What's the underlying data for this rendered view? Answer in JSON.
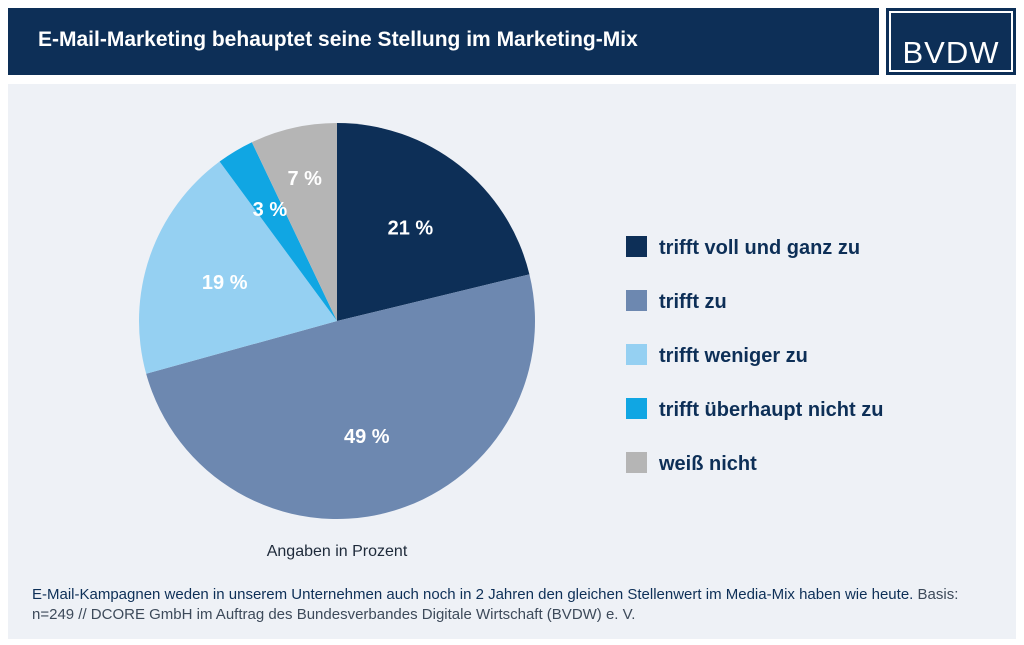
{
  "header": {
    "title": "E-Mail-Marketing behauptet seine Stellung im Marketing-Mix",
    "logo": "BVDW"
  },
  "colors": {
    "header_bg": "#0d2f57",
    "panel_bg": "#eef1f6"
  },
  "chart_data": {
    "type": "pie",
    "categories": [
      "trifft voll und ganz zu",
      "trifft zu",
      "trifft weniger zu",
      "trifft überhaupt nicht zu",
      "weiß nicht"
    ],
    "values": [
      21,
      49,
      19,
      3,
      7
    ],
    "value_labels": [
      "21 %",
      "49 %",
      "19 %",
      "3 %",
      "7 %"
    ],
    "colors": [
      "#0d2f57",
      "#6d88b0",
      "#95d0f2",
      "#10a6e3",
      "#b5b5b5"
    ],
    "start": "12 o'clock, clockwise",
    "legend_position": "right",
    "note": "Angaben in Prozent"
  },
  "footer": {
    "question": "E-Mail-Kampagnen weden in unserem Unternehmen auch noch in 2 Jahren den gleichen Stellenwert im Media-Mix haben wie heute.",
    "basis": "Basis: n=249 // DCORE GmbH im Auftrag des Bundesverbandes Digitale Wirtschaft (BVDW) e. V."
  }
}
